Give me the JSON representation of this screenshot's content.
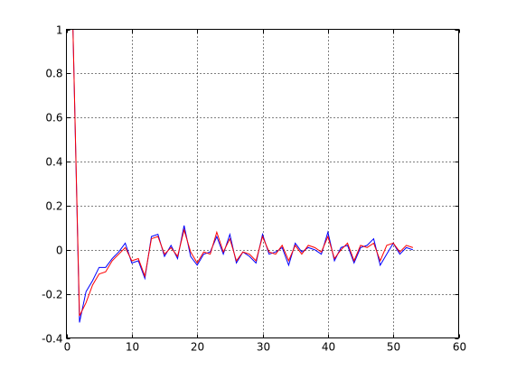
{
  "chart_data": {
    "type": "line",
    "title": "",
    "xlabel": "",
    "ylabel": "",
    "xlim": [
      0,
      60
    ],
    "ylim": [
      -0.4,
      1
    ],
    "xticks": [
      0,
      10,
      20,
      30,
      40,
      50,
      60
    ],
    "yticks": [
      -0.4,
      -0.2,
      0,
      0.2,
      0.4,
      0.6,
      0.8,
      1
    ],
    "xtick_labels": [
      "0",
      "10",
      "20",
      "30",
      "40",
      "50",
      "60"
    ],
    "ytick_labels": [
      "-0.4",
      "-0.2",
      "0",
      "0.2",
      "0.4",
      "0.6",
      "0.8",
      "1"
    ],
    "grid": true,
    "legend": "none",
    "x": [
      1,
      2,
      3,
      4,
      5,
      6,
      7,
      8,
      9,
      10,
      11,
      12,
      13,
      14,
      15,
      16,
      17,
      18,
      19,
      20,
      21,
      22,
      23,
      24,
      25,
      26,
      27,
      28,
      29,
      30,
      31,
      32,
      33,
      34,
      35,
      36,
      37,
      38,
      39,
      40,
      41,
      42,
      43,
      44,
      45,
      46,
      47,
      48,
      49,
      50,
      51,
      52,
      53
    ],
    "series": [
      {
        "color": "#0000ff",
        "values": [
          1.0,
          -0.33,
          -0.19,
          -0.14,
          -0.08,
          -0.08,
          -0.04,
          -0.01,
          0.03,
          -0.06,
          -0.05,
          -0.13,
          0.06,
          0.07,
          -0.03,
          0.02,
          -0.04,
          0.11,
          -0.03,
          -0.07,
          -0.02,
          -0.01,
          0.06,
          -0.02,
          0.07,
          -0.06,
          -0.01,
          -0.03,
          -0.06,
          0.07,
          -0.02,
          -0.01,
          0.01,
          -0.07,
          0.03,
          -0.01,
          0.01,
          0.0,
          -0.02,
          0.08,
          -0.05,
          0.01,
          0.02,
          -0.06,
          0.01,
          0.02,
          0.05,
          -0.07,
          -0.02,
          0.03,
          -0.02,
          0.01,
          0.0
        ]
      },
      {
        "color": "#ff0000",
        "values": [
          1.0,
          -0.3,
          -0.24,
          -0.16,
          -0.11,
          -0.1,
          -0.05,
          -0.02,
          0.01,
          -0.05,
          -0.04,
          -0.12,
          0.05,
          0.06,
          -0.02,
          0.01,
          -0.03,
          0.09,
          -0.01,
          -0.06,
          -0.01,
          -0.02,
          0.08,
          -0.01,
          0.05,
          -0.05,
          -0.01,
          -0.02,
          -0.05,
          0.06,
          -0.01,
          -0.02,
          0.02,
          -0.05,
          0.02,
          -0.02,
          0.02,
          0.01,
          -0.01,
          0.06,
          -0.04,
          0.0,
          0.03,
          -0.05,
          0.02,
          0.01,
          0.03,
          -0.05,
          0.02,
          0.03,
          -0.01,
          0.02,
          0.01
        ]
      }
    ]
  }
}
